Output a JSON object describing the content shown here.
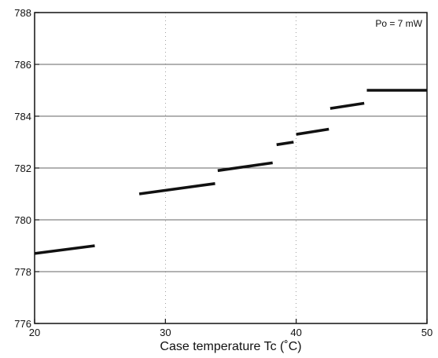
{
  "chart_data": {
    "type": "line",
    "title": "",
    "xlabel": "Case temperature Tc (˚C)",
    "ylabel": "",
    "annotation": "Po = 7 mW",
    "xlim": [
      20,
      50
    ],
    "ylim": [
      776,
      788
    ],
    "x_ticks": [
      "20",
      "30",
      "40",
      "50"
    ],
    "y_ticks": [
      "776",
      "778",
      "780",
      "782",
      "784",
      "786",
      "788"
    ],
    "grid": true,
    "legend": "none",
    "line_color": "#111111",
    "series": [
      {
        "segments": [
          {
            "x": [
              20.0,
              24.6
            ],
            "y": [
              778.7,
              779.0
            ]
          },
          {
            "x": [
              28.0,
              33.8
            ],
            "y": [
              781.0,
              781.4
            ]
          },
          {
            "x": [
              34.0,
              38.2
            ],
            "y": [
              781.9,
              782.2
            ]
          },
          {
            "x": [
              38.5,
              39.8
            ],
            "y": [
              782.9,
              783.0
            ]
          },
          {
            "x": [
              40.0,
              42.5
            ],
            "y": [
              783.3,
              783.5
            ]
          },
          {
            "x": [
              42.6,
              45.2
            ],
            "y": [
              784.3,
              784.5
            ]
          },
          {
            "x": [
              45.4,
              50.0
            ],
            "y": [
              785.0,
              785.0
            ]
          }
        ]
      }
    ]
  }
}
